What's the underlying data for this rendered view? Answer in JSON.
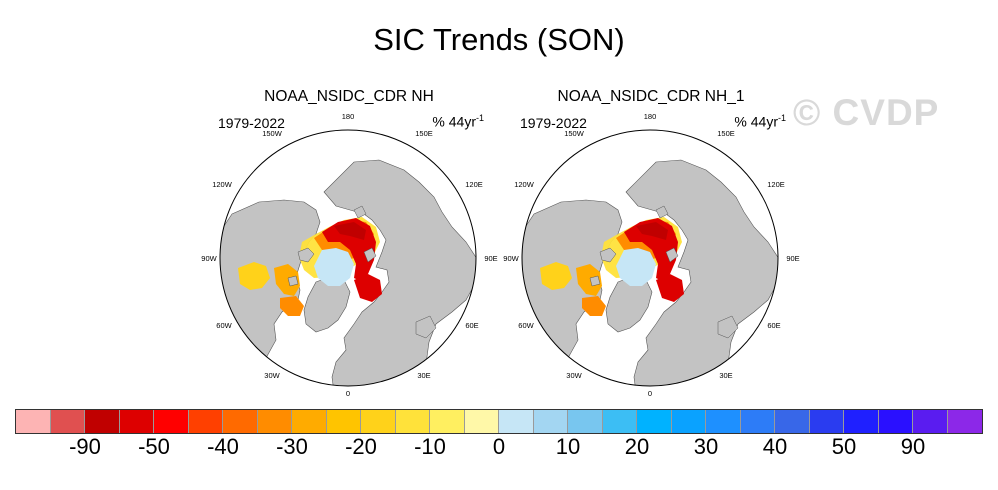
{
  "title": "SIC Trends (SON)",
  "watermark": "© CVDP",
  "panels": [
    {
      "title": "NOAA_NSIDC_CDR NH",
      "period": "1979-2022",
      "units": "% 44yr",
      "units_exp": "-1"
    },
    {
      "title": "NOAA_NSIDC_CDR NH_1",
      "period": "1979-2022",
      "units": "% 44yr",
      "units_exp": "-1"
    }
  ],
  "lon_labels": {
    "l180": "180",
    "l150E": "150E",
    "l120E": "120E",
    "l90E": "90E",
    "l60E": "60E",
    "l30E": "30E",
    "l0": "0",
    "l30W": "30W",
    "l60W": "60W",
    "l90W": "90W",
    "l120W": "120W",
    "l150W": "150W"
  },
  "colorbar": {
    "colors": [
      "#fdb4b4",
      "#e05050",
      "#c00000",
      "#dd0000",
      "#ff0000",
      "#ff4000",
      "#ff6a00",
      "#ff8c00",
      "#ffab00",
      "#ffc400",
      "#ffd21a",
      "#ffe23a",
      "#ffef60",
      "#fff8a8",
      "#c6e6f6",
      "#a3d6f2",
      "#78c6ef",
      "#3cbef4",
      "#00b2ff",
      "#0aa2ff",
      "#1e90ff",
      "#2d7cf7",
      "#3867e8",
      "#2a3cf0",
      "#1f20ff",
      "#2a10ff",
      "#5a1cf0",
      "#8c28e8"
    ],
    "labels": [
      {
        "text": "-90",
        "index": 1
      },
      {
        "text": "-50",
        "index": 3
      },
      {
        "text": "-40",
        "index": 5
      },
      {
        "text": "-30",
        "index": 7
      },
      {
        "text": "-20",
        "index": 9
      },
      {
        "text": "-10",
        "index": 11
      },
      {
        "text": "0",
        "index": 13
      },
      {
        "text": "10",
        "index": 15
      },
      {
        "text": "20",
        "index": 17
      },
      {
        "text": "30",
        "index": 19
      },
      {
        "text": "40",
        "index": 21
      },
      {
        "text": "50",
        "index": 23
      },
      {
        "text": "90",
        "index": 25
      }
    ]
  }
}
